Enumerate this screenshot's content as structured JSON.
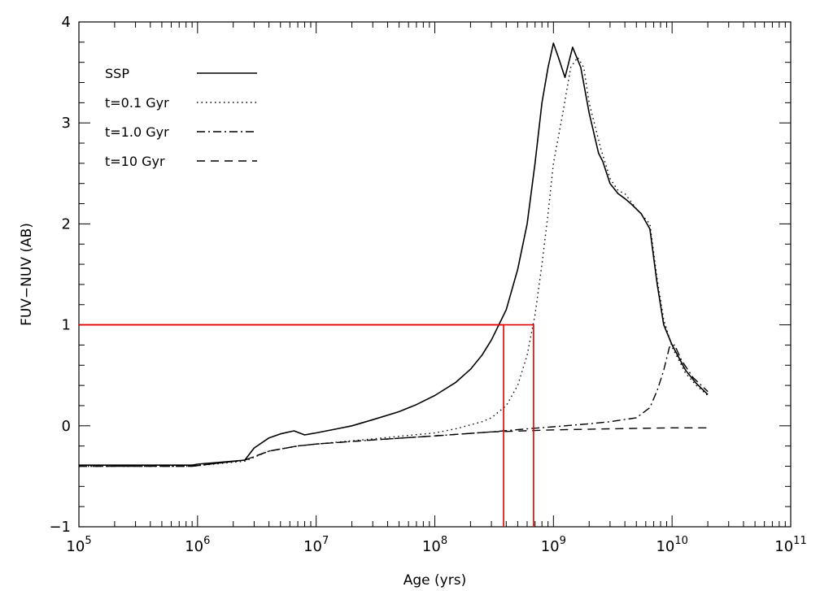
{
  "chart_data": {
    "type": "line",
    "xlabel": "Age (yrs)",
    "ylabel": "FUV−NUV (AB)",
    "x_scale": "log",
    "xlim": [
      100000,
      100000000000
    ],
    "ylim": [
      -1,
      4
    ],
    "grid": false,
    "legend_position": "top-left",
    "x_ticks": [
      {
        "value": 100000,
        "base": "10",
        "exp": "5"
      },
      {
        "value": 1000000,
        "base": "10",
        "exp": "6"
      },
      {
        "value": 10000000,
        "base": "10",
        "exp": "7"
      },
      {
        "value": 100000000,
        "base": "10",
        "exp": "8"
      },
      {
        "value": 1000000000,
        "base": "10",
        "exp": "9"
      },
      {
        "value": 10000000000,
        "base": "10",
        "exp": "10"
      },
      {
        "value": 100000000000,
        "base": "10",
        "exp": "11"
      }
    ],
    "y_ticks": [
      {
        "value": -1,
        "label": "−1"
      },
      {
        "value": 0,
        "label": "0"
      },
      {
        "value": 1,
        "label": "1"
      },
      {
        "value": 2,
        "label": "2"
      },
      {
        "value": 3,
        "label": "3"
      },
      {
        "value": 4,
        "label": "4"
      }
    ],
    "series": [
      {
        "name": "SSP",
        "dash": "solid",
        "points": [
          [
            100000,
            -0.39
          ],
          [
            900000,
            -0.39
          ],
          [
            1000000,
            -0.38
          ],
          [
            2000000,
            -0.35
          ],
          [
            2500000,
            -0.34
          ],
          [
            3000000,
            -0.22
          ],
          [
            4000000,
            -0.12
          ],
          [
            5000000,
            -0.08
          ],
          [
            6500000,
            -0.05
          ],
          [
            8000000,
            -0.09
          ],
          [
            10000000,
            -0.07
          ],
          [
            15000000,
            -0.03
          ],
          [
            20000000,
            0.0
          ],
          [
            30000000,
            0.06
          ],
          [
            50000000,
            0.14
          ],
          [
            70000000,
            0.21
          ],
          [
            100000000,
            0.3
          ],
          [
            150000000,
            0.43
          ],
          [
            200000000,
            0.56
          ],
          [
            250000000,
            0.7
          ],
          [
            300000000,
            0.85
          ],
          [
            400000000,
            1.15
          ],
          [
            500000000,
            1.55
          ],
          [
            600000000,
            2.0
          ],
          [
            700000000,
            2.6
          ],
          [
            800000000,
            3.2
          ],
          [
            900000000,
            3.55
          ],
          [
            1000000000,
            3.79
          ],
          [
            1100000000,
            3.65
          ],
          [
            1250000000,
            3.45
          ],
          [
            1450000000,
            3.75
          ],
          [
            1700000000,
            3.55
          ],
          [
            2000000000,
            3.1
          ],
          [
            2400000000,
            2.7
          ],
          [
            2600000000,
            2.62
          ],
          [
            3000000000,
            2.4
          ],
          [
            3500000000,
            2.3
          ],
          [
            4000000000,
            2.25
          ],
          [
            4500000000,
            2.2
          ],
          [
            5500000000,
            2.1
          ],
          [
            6500000000,
            1.95
          ],
          [
            7500000000,
            1.4
          ],
          [
            8500000000,
            1.0
          ],
          [
            10000000000,
            0.8
          ],
          [
            13000000000,
            0.55
          ],
          [
            16000000000,
            0.42
          ],
          [
            20000000000,
            0.31
          ]
        ]
      },
      {
        "name": "t=0.1 Gyr",
        "dash": "dotted",
        "points": [
          [
            100000,
            -0.4
          ],
          [
            900000,
            -0.4
          ],
          [
            2500000,
            -0.35
          ],
          [
            4000000,
            -0.25
          ],
          [
            7000000,
            -0.2
          ],
          [
            10000000,
            -0.18
          ],
          [
            30000000,
            -0.13
          ],
          [
            100000000,
            -0.07
          ],
          [
            150000000,
            -0.03
          ],
          [
            200000000,
            0.01
          ],
          [
            250000000,
            0.04
          ],
          [
            300000000,
            0.08
          ],
          [
            400000000,
            0.2
          ],
          [
            500000000,
            0.4
          ],
          [
            600000000,
            0.7
          ],
          [
            700000000,
            1.1
          ],
          [
            800000000,
            1.6
          ],
          [
            900000000,
            2.1
          ],
          [
            1000000000,
            2.6
          ],
          [
            1200000000,
            3.1
          ],
          [
            1400000000,
            3.55
          ],
          [
            1600000000,
            3.65
          ],
          [
            1800000000,
            3.55
          ],
          [
            2000000000,
            3.2
          ],
          [
            2500000000,
            2.75
          ],
          [
            3000000000,
            2.45
          ],
          [
            3500000000,
            2.33
          ],
          [
            4000000000,
            2.3
          ],
          [
            5000000000,
            2.15
          ],
          [
            6500000000,
            2.0
          ],
          [
            7500000000,
            1.45
          ],
          [
            8500000000,
            1.05
          ],
          [
            10000000000,
            0.78
          ],
          [
            13000000000,
            0.52
          ],
          [
            16000000000,
            0.4
          ],
          [
            20000000000,
            0.3
          ]
        ]
      },
      {
        "name": "t=1.0 Gyr",
        "dash": "dashdot",
        "points": [
          [
            100000,
            -0.4
          ],
          [
            900000,
            -0.4
          ],
          [
            2500000,
            -0.34
          ],
          [
            4000000,
            -0.25
          ],
          [
            7000000,
            -0.2
          ],
          [
            10000000,
            -0.18
          ],
          [
            30000000,
            -0.14
          ],
          [
            100000000,
            -0.1
          ],
          [
            300000000,
            -0.06
          ],
          [
            600000000,
            -0.03
          ],
          [
            1000000000,
            -0.01
          ],
          [
            2000000000,
            0.02
          ],
          [
            3000000000,
            0.04
          ],
          [
            5000000000,
            0.08
          ],
          [
            6500000000,
            0.18
          ],
          [
            7500000000,
            0.35
          ],
          [
            8500000000,
            0.55
          ],
          [
            9500000000,
            0.78
          ],
          [
            10500000000,
            0.8
          ],
          [
            12000000000,
            0.65
          ],
          [
            15000000000,
            0.48
          ],
          [
            20000000000,
            0.34
          ]
        ]
      },
      {
        "name": "t=10 Gyr",
        "dash": "dashed",
        "points": [
          [
            100000,
            -0.4
          ],
          [
            900000,
            -0.4
          ],
          [
            2500000,
            -0.34
          ],
          [
            4000000,
            -0.25
          ],
          [
            7000000,
            -0.2
          ],
          [
            10000000,
            -0.18
          ],
          [
            30000000,
            -0.14
          ],
          [
            100000000,
            -0.1
          ],
          [
            300000000,
            -0.06
          ],
          [
            1000000000,
            -0.04
          ],
          [
            3000000000,
            -0.03
          ],
          [
            10000000000,
            -0.02
          ],
          [
            20000000000,
            -0.02
          ]
        ]
      }
    ],
    "reference_lines": [
      {
        "name": "age-marker-ssp",
        "x_end": 380000000,
        "y": 1,
        "color": "#e00000"
      },
      {
        "name": "age-marker-t01",
        "x_end": 680000000,
        "y": 1,
        "color": "#e00000"
      }
    ]
  }
}
